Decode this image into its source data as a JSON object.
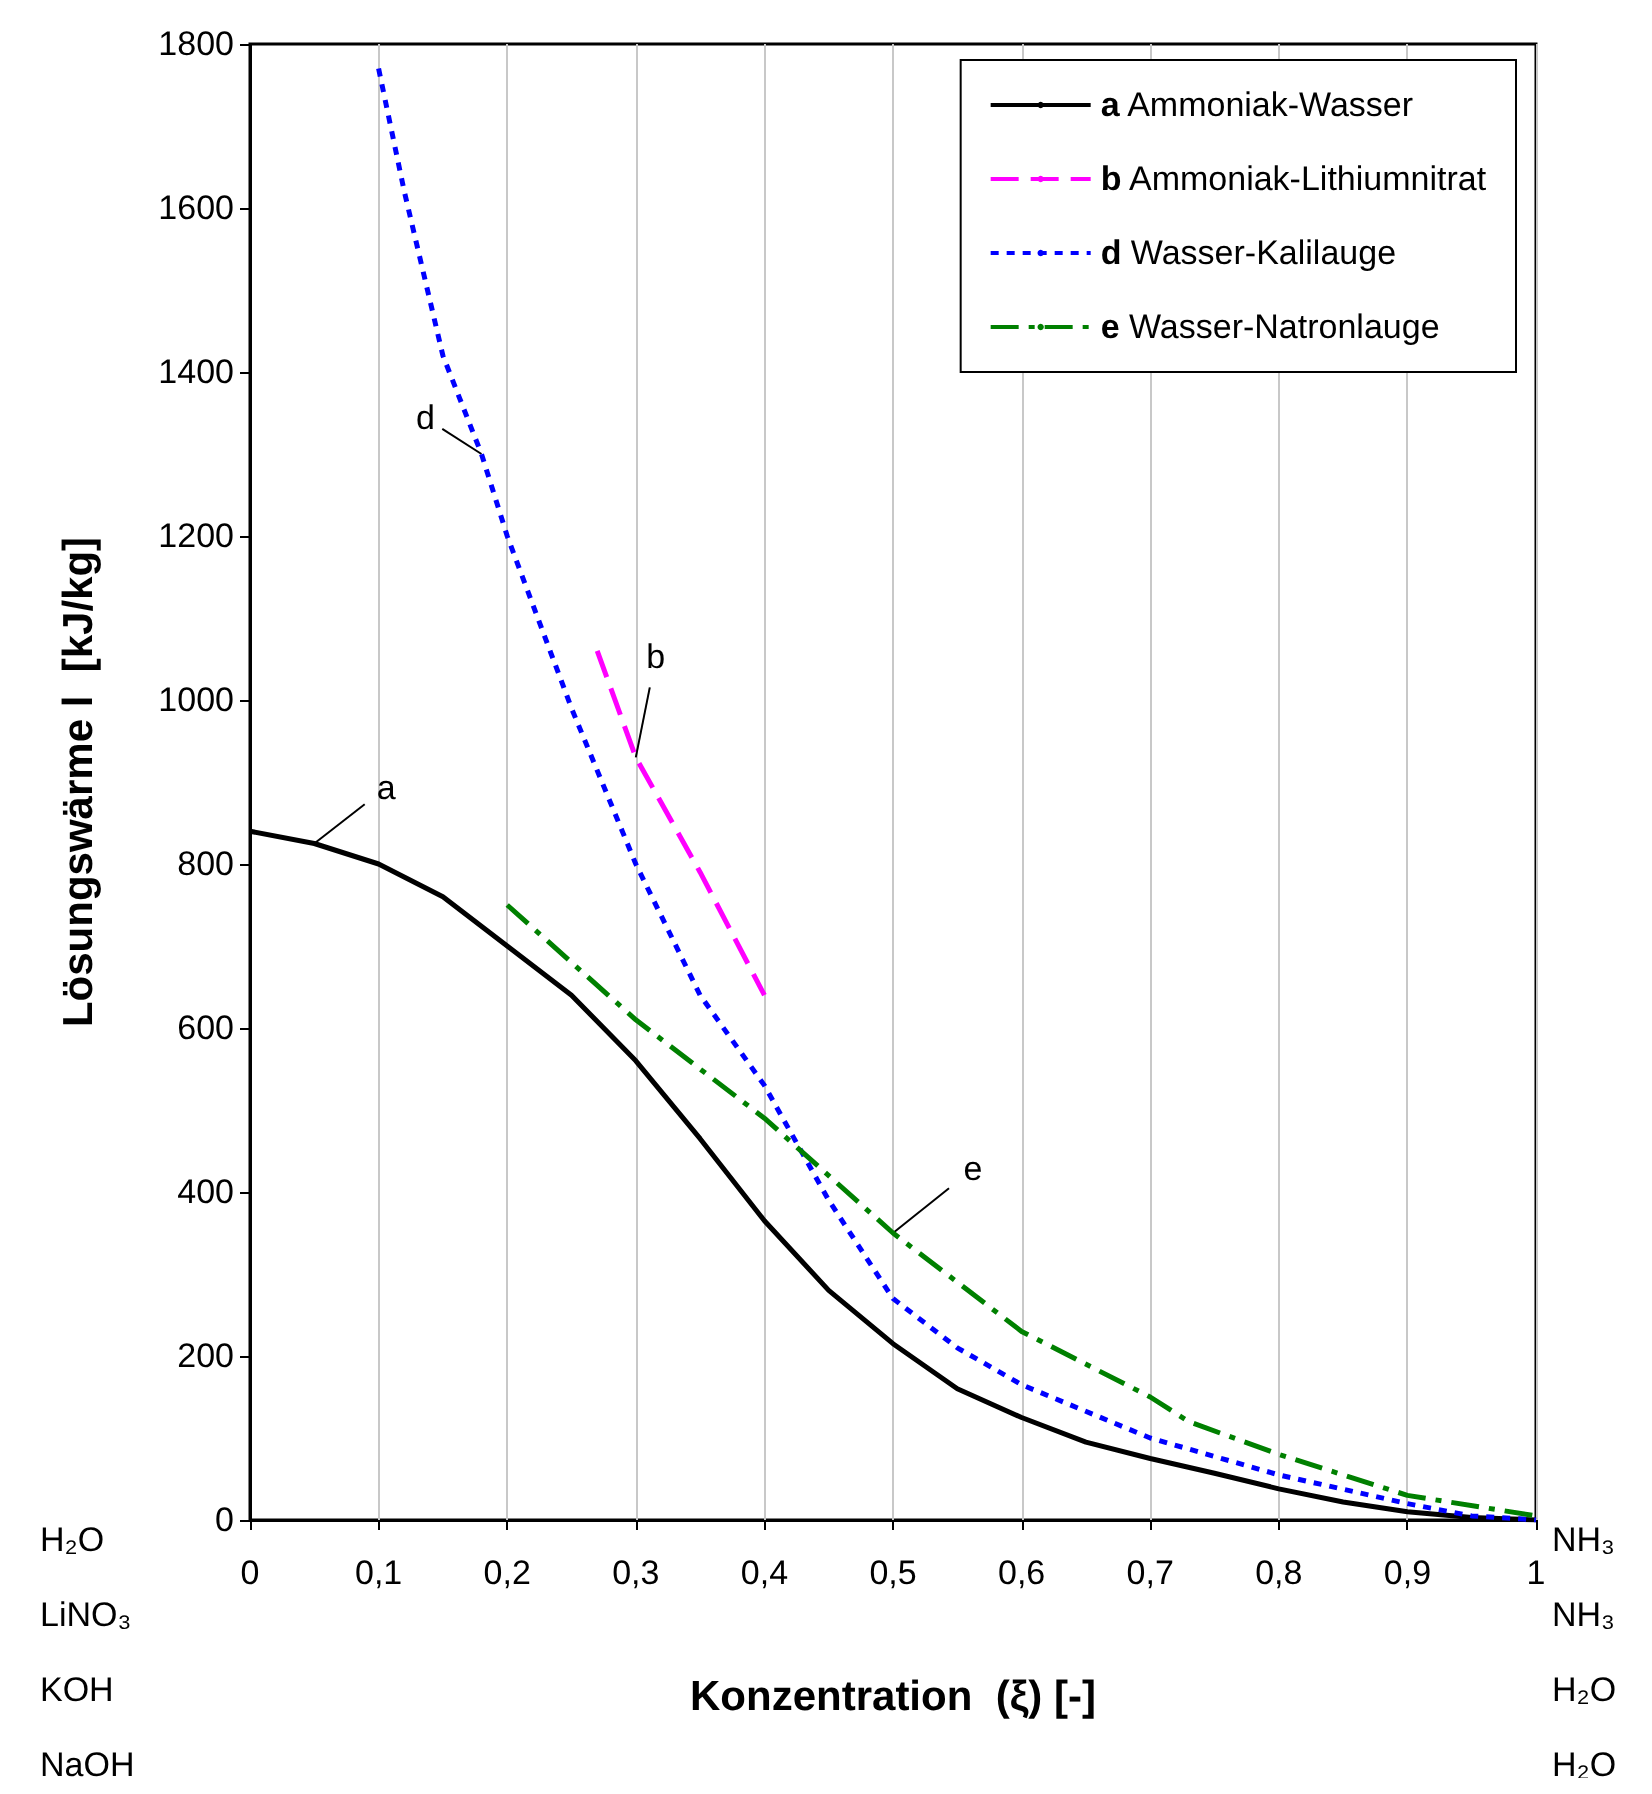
{
  "chart_data": {
    "type": "line",
    "xlabel": "Konzentration  (ξ) [-]",
    "ylabel": "Lösungswärme l  [kJ/kg]",
    "xlim": [
      0,
      1
    ],
    "xticks": [
      0,
      {
        "value": 0.1,
        "label": "0,1"
      },
      {
        "value": 0.2,
        "label": "0,2"
      },
      {
        "value": 0.3,
        "label": "0,3"
      },
      {
        "value": 0.4,
        "label": "0,4"
      },
      {
        "value": 0.5,
        "label": "0,5"
      },
      {
        "value": 0.6,
        "label": "0,6"
      },
      {
        "value": 0.7,
        "label": "0,7"
      },
      {
        "value": 0.8,
        "label": "0,8"
      },
      {
        "value": 0.9,
        "label": "0,9"
      },
      1
    ],
    "ylim": [
      0,
      1800
    ],
    "yticks": [
      0,
      200,
      400,
      600,
      800,
      1000,
      1200,
      1400,
      1600,
      1800
    ],
    "grid": "x",
    "legend": "top right",
    "marker": "none",
    "series": [
      {
        "name": "a Ammoniak-Wasser",
        "color": "#000000",
        "line_style": "solid",
        "x": [
          0,
          0.05,
          0.1,
          0.15,
          0.2,
          0.25,
          0.3,
          0.35,
          0.4,
          0.45,
          0.5,
          0.55,
          0.6,
          0.65,
          0.7,
          0.75,
          0.8,
          0.85,
          0.9,
          0.95,
          1
        ],
        "values": [
          840,
          825,
          800,
          760,
          700,
          640,
          560,
          465,
          365,
          280,
          215,
          160,
          125,
          95,
          75,
          57,
          38,
          22,
          10,
          3,
          0
        ]
      },
      {
        "name": "b Ammoniak-Lithiumnitrat",
        "color": "#ff00ff",
        "line_style": "dashed",
        "x": [
          0.27,
          0.3,
          0.35,
          0.4
        ],
        "values": [
          1060,
          930,
          790,
          640
        ]
      },
      {
        "name": "d Wasser-Kalilauge",
        "color": "#0000ff",
        "line_style": "dotted",
        "x": [
          0.1,
          0.12,
          0.15,
          0.18,
          0.2,
          0.25,
          0.3,
          0.35,
          0.4,
          0.45,
          0.5,
          0.55,
          0.6,
          0.7,
          0.8,
          0.9,
          0.95,
          1
        ],
        "values": [
          1770,
          1620,
          1420,
          1300,
          1200,
          990,
          800,
          640,
          530,
          390,
          270,
          210,
          165,
          100,
          55,
          20,
          5,
          0
        ]
      },
      {
        "name": "e Wasser-Natronlauge",
        "color": "#008000",
        "line_style": "dashdot",
        "x": [
          0.2,
          0.3,
          0.4,
          0.5,
          0.6,
          0.7,
          0.73,
          0.8,
          0.9,
          1
        ],
        "values": [
          750,
          610,
          490,
          350,
          230,
          150,
          120,
          80,
          30,
          5
        ]
      }
    ],
    "annotations": [
      {
        "text": "a",
        "x": 0.05,
        "y": 825
      },
      {
        "text": "b",
        "x": 0.3,
        "y": 930
      },
      {
        "text": "d",
        "x": 0.18,
        "y": 1300
      },
      {
        "text": "e",
        "x": 0.5,
        "y": 350
      },
      "H₂O",
      "LiNO₃",
      "KOH",
      "NaOH",
      "NH₃",
      "NH₃",
      "H₂O",
      "H₂O"
    ]
  }
}
